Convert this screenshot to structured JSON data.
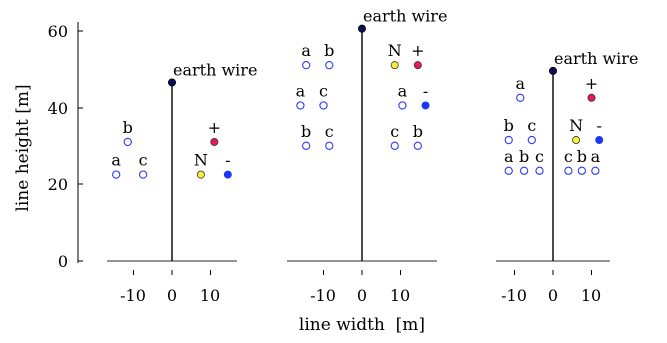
{
  "ylabel": "line height [m]",
  "xlabel": "line width  [m]",
  "y_ticks": [
    "0",
    "20",
    "40",
    "60"
  ],
  "x_ticks": [
    "-10",
    "0",
    "10"
  ],
  "colors": {
    "conductor_ring": "#2a3df5",
    "neutral_fill": "#f4ee3c",
    "positive_fill": "#e8185a",
    "negative_fill": "#1838f5",
    "earth_wire_fill": "#0c0c5a",
    "axis": "#000000",
    "ground": "#555555"
  },
  "towers": [
    {
      "earth_wire": {
        "label": "earth wire",
        "x": 0,
        "y": 46.5
      },
      "conductors": [
        {
          "x": -14.5,
          "y": 22.5,
          "type": "open",
          "label": "a"
        },
        {
          "x": -11.5,
          "y": 31,
          "type": "open",
          "label": "b"
        },
        {
          "x": -7.5,
          "y": 22.5,
          "type": "open",
          "label": "c"
        },
        {
          "x": 7.5,
          "y": 22.5,
          "type": "neutral",
          "label": "N"
        },
        {
          "x": 11,
          "y": 31,
          "type": "positive",
          "label": "+"
        },
        {
          "x": 14.5,
          "y": 22.5,
          "type": "negative",
          "label": "-"
        }
      ]
    },
    {
      "earth_wire": {
        "label": "earth wire",
        "x": 0,
        "y": 60.5
      },
      "conductors": [
        {
          "x": -14.5,
          "y": 51,
          "type": "open",
          "label": "a"
        },
        {
          "x": -8.5,
          "y": 51,
          "type": "open",
          "label": "b"
        },
        {
          "x": -16,
          "y": 40.5,
          "type": "open",
          "label": "a"
        },
        {
          "x": -10,
          "y": 40.5,
          "type": "open",
          "label": "c"
        },
        {
          "x": -14.5,
          "y": 30,
          "type": "open",
          "label": "b"
        },
        {
          "x": -8.5,
          "y": 30,
          "type": "open",
          "label": "c"
        },
        {
          "x": 8.5,
          "y": 51,
          "type": "neutral",
          "label": "N"
        },
        {
          "x": 14.5,
          "y": 51,
          "type": "positive",
          "label": "+"
        },
        {
          "x": 10.5,
          "y": 40.5,
          "type": "open",
          "label": "a"
        },
        {
          "x": 16.5,
          "y": 40.5,
          "type": "negative",
          "label": "-"
        },
        {
          "x": 8.5,
          "y": 30,
          "type": "open",
          "label": "c"
        },
        {
          "x": 14.5,
          "y": 30,
          "type": "open",
          "label": "b"
        }
      ]
    },
    {
      "earth_wire": {
        "label": "earth wire",
        "x": 0,
        "y": 49.5
      },
      "conductors": [
        {
          "x": -8.5,
          "y": 42.5,
          "type": "open",
          "label": "a"
        },
        {
          "x": -11.5,
          "y": 31.5,
          "type": "open",
          "label": "b"
        },
        {
          "x": -5.5,
          "y": 31.5,
          "type": "open",
          "label": "c"
        },
        {
          "x": -11.5,
          "y": 23.5,
          "type": "open",
          "label": "a"
        },
        {
          "x": -7.5,
          "y": 23.5,
          "type": "open",
          "label": "b"
        },
        {
          "x": -3.5,
          "y": 23.5,
          "type": "open",
          "label": "c"
        },
        {
          "x": 10,
          "y": 42.5,
          "type": "positive",
          "label": "+"
        },
        {
          "x": 6,
          "y": 31.5,
          "type": "neutral",
          "label": "N"
        },
        {
          "x": 12,
          "y": 31.5,
          "type": "negative",
          "label": "-"
        },
        {
          "x": 4,
          "y": 23.5,
          "type": "open",
          "label": "c"
        },
        {
          "x": 7.5,
          "y": 23.5,
          "type": "open",
          "label": "b"
        },
        {
          "x": 11,
          "y": 23.5,
          "type": "open",
          "label": "a"
        }
      ]
    }
  ]
}
